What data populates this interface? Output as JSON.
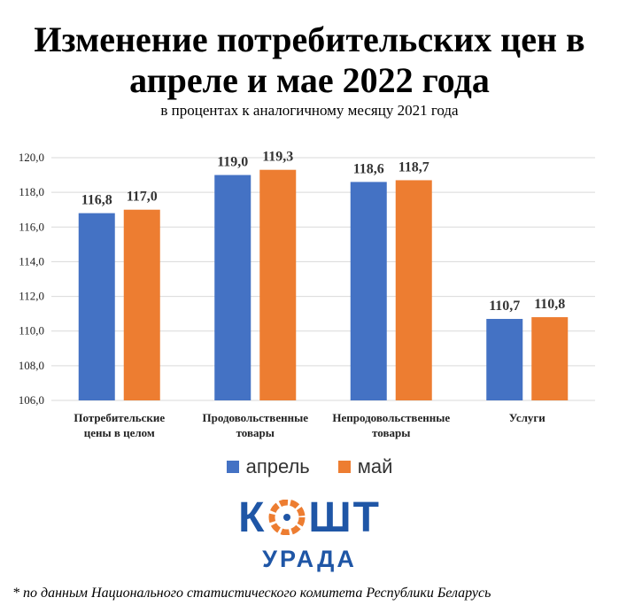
{
  "header": {
    "title_line1": "Изменение потребительских цен в",
    "title_line2": "апреле и мае 2022 года",
    "subtitle": "в процентах к аналогичному месяцу 2021 года"
  },
  "chart_data": {
    "type": "bar",
    "title": "Изменение потребительских цен в апреле и мае 2022 года",
    "subtitle": "в процентах к аналогичному месяцу 2021 года",
    "categories": [
      [
        "Потребительские",
        "цены в целом"
      ],
      [
        "Продовольственные",
        "товары"
      ],
      [
        "Непродовольственные",
        "товары"
      ],
      [
        "Услуги"
      ]
    ],
    "series": [
      {
        "name": "апрель",
        "color": "#4472c4",
        "values": [
          116.8,
          119.0,
          118.6,
          110.7
        ],
        "labels": [
          "116,8",
          "119,0",
          "118,6",
          "110,7"
        ]
      },
      {
        "name": "май",
        "color": "#ed7d31",
        "values": [
          117.0,
          119.3,
          118.7,
          110.8
        ],
        "labels": [
          "117,0",
          "119,3",
          "118,7",
          "110,8"
        ]
      }
    ],
    "ylim": [
      106,
      120
    ],
    "yticks": [
      106,
      108,
      110,
      112,
      114,
      116,
      118,
      120
    ],
    "ytick_labels": [
      "106,0",
      "108,0",
      "110,0",
      "112,0",
      "114,0",
      "116,0",
      "118,0",
      "120,0"
    ],
    "grid": true,
    "legend_position": "bottom"
  },
  "logo": {
    "top_left": "К",
    "top_right": "ШТ",
    "bottom": "УРАДА",
    "icon": "coin-emblem-icon"
  },
  "footnote": "* по данным Национального статистического комитета Республики Беларусь"
}
